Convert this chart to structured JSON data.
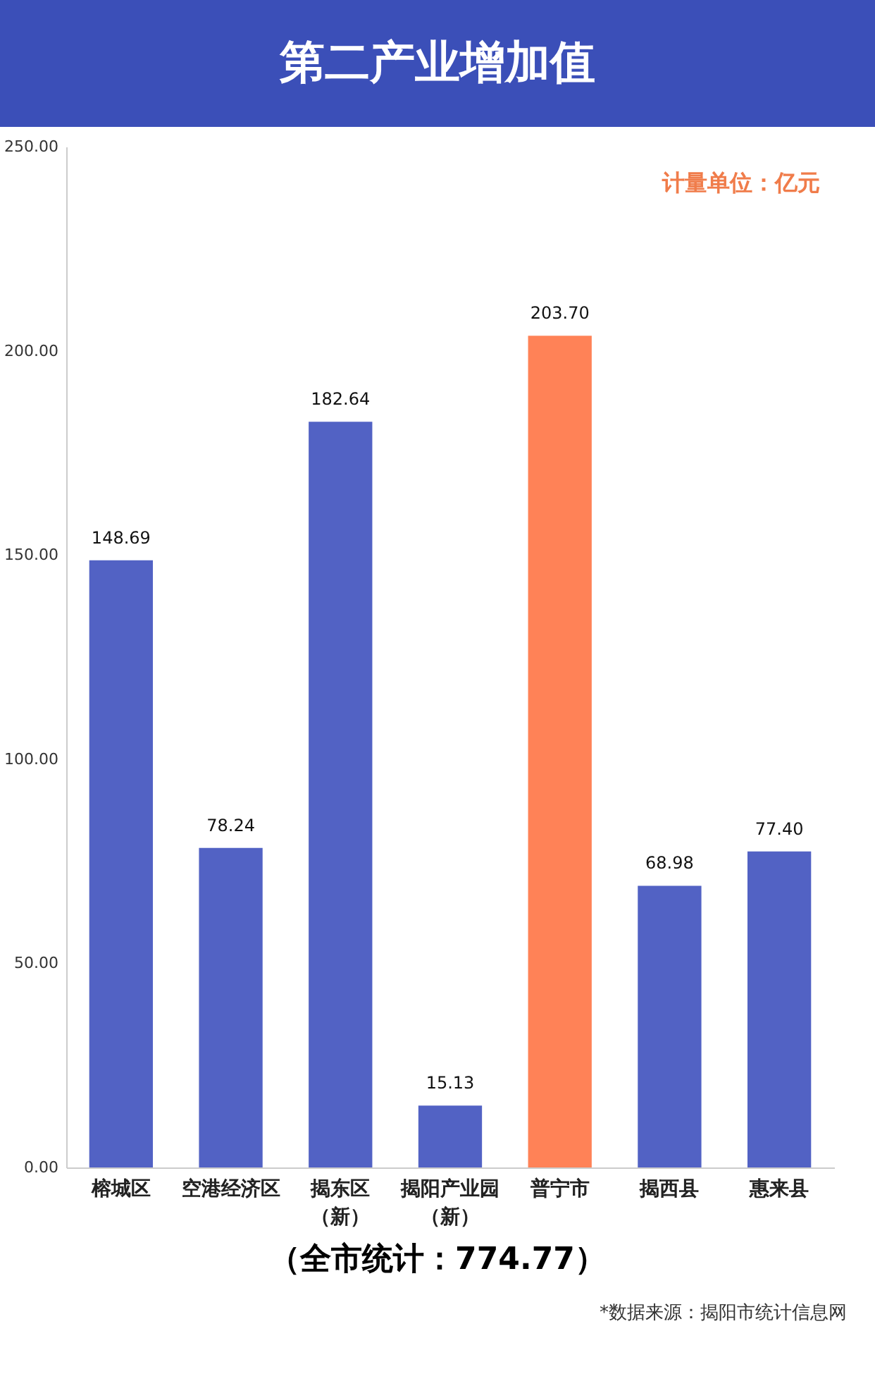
{
  "chart_data": {
    "type": "bar",
    "title": "第二产业增加值",
    "categories": [
      "榕城区",
      "空港经济区",
      "揭东区（新）",
      "揭阳产业园（新）",
      "普宁市",
      "揭西县",
      "惠来县"
    ],
    "values": [
      148.69,
      78.24,
      182.64,
      15.13,
      203.7,
      68.98,
      77.4
    ],
    "value_labels": [
      "148.69",
      "78.24",
      "182.64",
      "15.13",
      "203.70",
      "68.98",
      "77.40"
    ],
    "colors": [
      "#5262c4",
      "#5262c4",
      "#5262c4",
      "#5262c4",
      "#ff8257",
      "#5262c4",
      "#5262c4"
    ],
    "ylim": [
      0,
      250
    ],
    "yticks": [
      {
        "value": 0,
        "label": "0.00"
      },
      {
        "value": 50,
        "label": "50.00"
      },
      {
        "value": 100,
        "label": "100.00"
      },
      {
        "value": 150,
        "label": "150.00"
      },
      {
        "value": 200,
        "label": "200.00"
      },
      {
        "value": 250,
        "label": "250.00"
      }
    ],
    "grid": false,
    "annotations": [
      "计量单位：亿元",
      "（全市统计：774.77）",
      "*数据来源：揭阳市统计信息网"
    ]
  }
}
